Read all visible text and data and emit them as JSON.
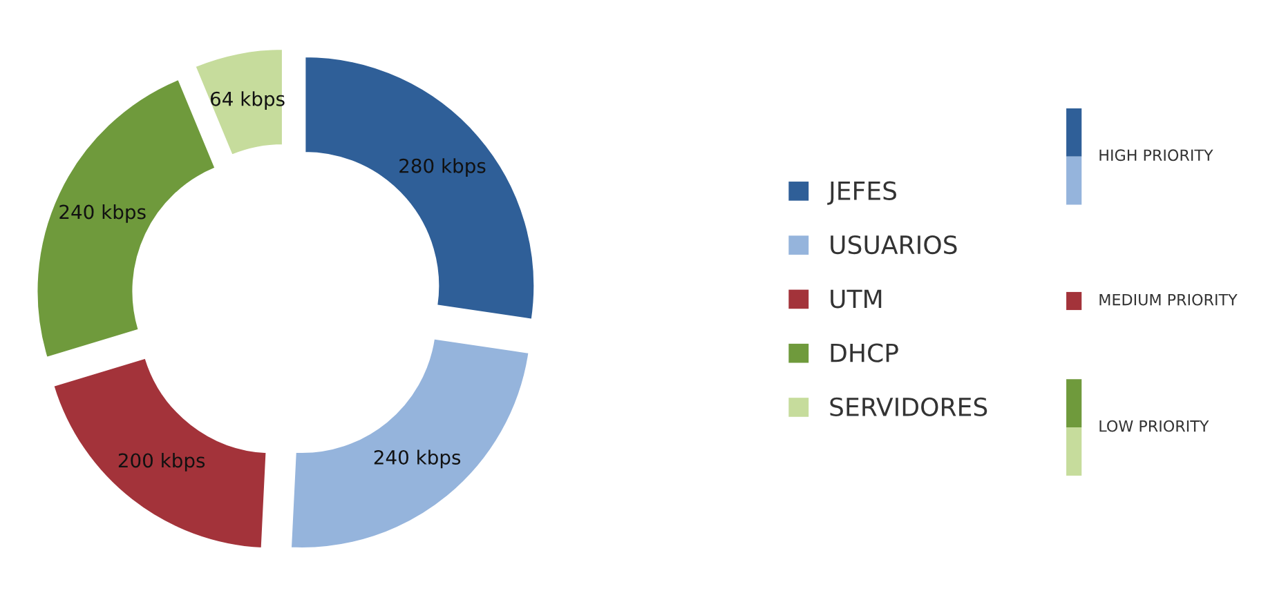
{
  "chart_data": {
    "type": "donut",
    "categories": [
      "JEFES",
      "USUARIOS",
      "UTM",
      "DHCP",
      "SERVIDORES"
    ],
    "values": [
      280,
      240,
      200,
      240,
      64
    ],
    "value_labels": [
      "280 kbps",
      "240 kbps",
      "200 kbps",
      "240 kbps",
      "64 kbps"
    ],
    "colors": [
      "#2f5f98",
      "#95b4dc",
      "#a3333a",
      "#6f9a3c",
      "#c6dc9c"
    ],
    "legend": "right",
    "annotations": [
      "HIGH PRIORITY",
      "MEDIUM PRIORITY",
      "LOW PRIORITY"
    ]
  }
}
